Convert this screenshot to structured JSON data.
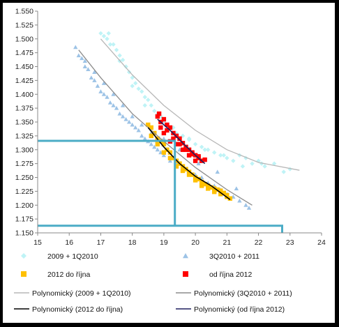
{
  "chart_data": {
    "type": "scatter",
    "title": "",
    "xlabel": "",
    "ylabel": "",
    "xlim": [
      15,
      24
    ],
    "ylim": [
      1.15,
      1.55
    ],
    "xticks": [
      "15",
      "16",
      "17",
      "18",
      "19",
      "20",
      "21",
      "22",
      "23",
      "24"
    ],
    "yticks": [
      "1.150",
      "1.175",
      "1.200",
      "1.225",
      "1.250",
      "1.275",
      "1.300",
      "1.325",
      "1.350",
      "1.375",
      "1.400",
      "1.425",
      "1.450",
      "1.475",
      "1.500",
      "1.525",
      "1.550"
    ],
    "grid": false,
    "legend_position": "bottom",
    "series": [
      {
        "name": "2009 + 1Q2010",
        "color": "#bff3f6",
        "marker": "diamond",
        "x": [
          17.0,
          17.1,
          17.2,
          17.25,
          17.4,
          17.5,
          17.6,
          17.7,
          17.8,
          17.9,
          18.0,
          18.1,
          18.2,
          18.3,
          18.4,
          18.5,
          18.6,
          18.7,
          18.8,
          18.9,
          19.0,
          19.1,
          19.2,
          19.4,
          19.6,
          19.8,
          20.0,
          20.2,
          20.4,
          20.6,
          20.8,
          21.0,
          21.2,
          21.4,
          21.6,
          21.8,
          22.0,
          22.2,
          22.5,
          22.8,
          23.0,
          17.3,
          17.6,
          18.0,
          18.4,
          18.8,
          19.3,
          19.8,
          20.3,
          20.9,
          21.5,
          22.1
        ],
        "y": [
          1.51,
          1.505,
          1.5,
          1.51,
          1.49,
          1.48,
          1.47,
          1.462,
          1.45,
          1.44,
          1.43,
          1.42,
          1.41,
          1.405,
          1.395,
          1.39,
          1.38,
          1.37,
          1.365,
          1.36,
          1.35,
          1.345,
          1.34,
          1.33,
          1.325,
          1.318,
          1.31,
          1.305,
          1.3,
          1.295,
          1.29,
          1.285,
          1.28,
          1.29,
          1.285,
          1.275,
          1.28,
          1.27,
          1.275,
          1.26,
          1.265,
          1.49,
          1.46,
          1.415,
          1.38,
          1.36,
          1.34,
          1.32,
          1.3,
          1.29,
          1.27,
          1.275
        ]
      },
      {
        "name": "3Q2010 + 2011",
        "color": "#9dc3e6",
        "marker": "triangle",
        "x": [
          16.2,
          16.3,
          16.4,
          16.5,
          16.6,
          16.7,
          16.8,
          16.9,
          17.0,
          17.1,
          17.2,
          17.3,
          17.4,
          17.5,
          17.6,
          17.7,
          17.8,
          17.9,
          18.0,
          18.1,
          18.2,
          18.3,
          18.4,
          18.5,
          18.6,
          18.7,
          18.8,
          18.9,
          19.0,
          19.2,
          19.4,
          19.6,
          19.8,
          20.0,
          20.2,
          20.4,
          20.6,
          20.8,
          21.0,
          21.2,
          21.4,
          21.6,
          21.7,
          16.5,
          16.8,
          17.1,
          17.4,
          17.7,
          18.0,
          18.3,
          18.6,
          19.0,
          19.5,
          20.1,
          20.7,
          21.3
        ],
        "y": [
          1.485,
          1.47,
          1.465,
          1.45,
          1.445,
          1.43,
          1.425,
          1.415,
          1.405,
          1.4,
          1.395,
          1.385,
          1.38,
          1.375,
          1.365,
          1.36,
          1.355,
          1.35,
          1.345,
          1.34,
          1.335,
          1.325,
          1.32,
          1.315,
          1.31,
          1.305,
          1.3,
          1.295,
          1.29,
          1.28,
          1.275,
          1.265,
          1.26,
          1.255,
          1.25,
          1.24,
          1.235,
          1.228,
          1.22,
          1.215,
          1.208,
          1.2,
          1.195,
          1.46,
          1.44,
          1.42,
          1.4,
          1.38,
          1.36,
          1.345,
          1.33,
          1.32,
          1.3,
          1.275,
          1.26,
          1.23
        ]
      },
      {
        "name": "2012 do října",
        "color": "#ffc000",
        "marker": "square",
        "x": [
          18.5,
          18.6,
          18.7,
          18.8,
          18.9,
          19.0,
          19.1,
          19.2,
          19.3,
          19.4,
          19.5,
          19.6,
          19.7,
          19.8,
          19.9,
          20.0,
          20.1,
          20.2,
          20.3,
          20.4,
          20.5,
          20.6,
          20.7,
          20.8,
          20.9,
          21.0,
          21.1,
          18.6,
          18.8,
          19.0,
          19.2,
          19.4,
          19.6,
          19.8,
          20.0,
          20.2,
          20.4,
          20.6,
          20.8,
          21.0
        ],
        "y": [
          1.345,
          1.34,
          1.33,
          1.32,
          1.315,
          1.31,
          1.3,
          1.295,
          1.285,
          1.28,
          1.275,
          1.27,
          1.265,
          1.26,
          1.255,
          1.25,
          1.247,
          1.242,
          1.238,
          1.235,
          1.232,
          1.23,
          1.228,
          1.226,
          1.222,
          1.218,
          1.212,
          1.325,
          1.31,
          1.295,
          1.285,
          1.27,
          1.262,
          1.255,
          1.245,
          1.235,
          1.23,
          1.224,
          1.22,
          1.215
        ]
      },
      {
        "name": "od října 2012",
        "color": "#ff0000",
        "marker": "square",
        "x": [
          18.8,
          18.85,
          18.9,
          19.0,
          19.1,
          19.2,
          19.3,
          19.4,
          19.5,
          19.6,
          19.7,
          19.8,
          19.9,
          20.0,
          20.1,
          20.2,
          20.3,
          19.0,
          19.2,
          19.4,
          19.6,
          19.8,
          20.0,
          18.9,
          19.1,
          19.3,
          19.5,
          19.7,
          19.9,
          20.1
        ],
        "y": [
          1.36,
          1.365,
          1.35,
          1.355,
          1.345,
          1.34,
          1.33,
          1.325,
          1.32,
          1.312,
          1.305,
          1.3,
          1.295,
          1.29,
          1.285,
          1.28,
          1.282,
          1.33,
          1.315,
          1.31,
          1.3,
          1.29,
          1.28,
          1.34,
          1.335,
          1.32,
          1.31,
          1.3,
          1.292,
          1.288
        ]
      }
    ],
    "trendlines": [
      {
        "name": "Polynomický (2009 + 1Q2010)",
        "color": "#b7b7b7",
        "x_range": [
          17.0,
          23.3
        ],
        "points": [
          [
            17.0,
            1.5
          ],
          [
            18.0,
            1.435
          ],
          [
            19.0,
            1.38
          ],
          [
            20.0,
            1.335
          ],
          [
            21.0,
            1.3
          ],
          [
            22.0,
            1.277
          ],
          [
            23.3,
            1.263
          ]
        ]
      },
      {
        "name": "Polynomický (3Q2010 + 2011)",
        "color": "#8c8c8c",
        "x_range": [
          16.3,
          21.8
        ],
        "points": [
          [
            16.3,
            1.48
          ],
          [
            17.0,
            1.43
          ],
          [
            18.0,
            1.365
          ],
          [
            19.0,
            1.315
          ],
          [
            20.0,
            1.268
          ],
          [
            21.0,
            1.228
          ],
          [
            21.8,
            1.2
          ]
        ]
      },
      {
        "name": "Polynomický (2012 do října)",
        "color": "#000000",
        "x_range": [
          18.5,
          21.1
        ],
        "points": [
          [
            18.5,
            1.34
          ],
          [
            19.0,
            1.305
          ],
          [
            19.5,
            1.275
          ],
          [
            20.0,
            1.252
          ],
          [
            20.5,
            1.235
          ],
          [
            21.1,
            1.21
          ]
        ]
      },
      {
        "name": "Polynomický (od října 2012)",
        "color": "#1f1f5e",
        "x_range": [
          18.8,
          20.3
        ],
        "points": [
          [
            18.8,
            1.355
          ],
          [
            19.2,
            1.335
          ],
          [
            19.6,
            1.312
          ],
          [
            20.0,
            1.29
          ],
          [
            20.3,
            1.275
          ]
        ]
      }
    ],
    "annotations": [
      {
        "color": "#4bacc6",
        "path": [
          [
            15.0,
            1.316
          ],
          [
            19.35,
            1.316
          ],
          [
            19.35,
            1.163
          ]
        ]
      },
      {
        "color": "#4bacc6",
        "path": [
          [
            15.0,
            1.163
          ],
          [
            22.75,
            1.163
          ],
          [
            22.75,
            1.15
          ]
        ]
      }
    ]
  }
}
